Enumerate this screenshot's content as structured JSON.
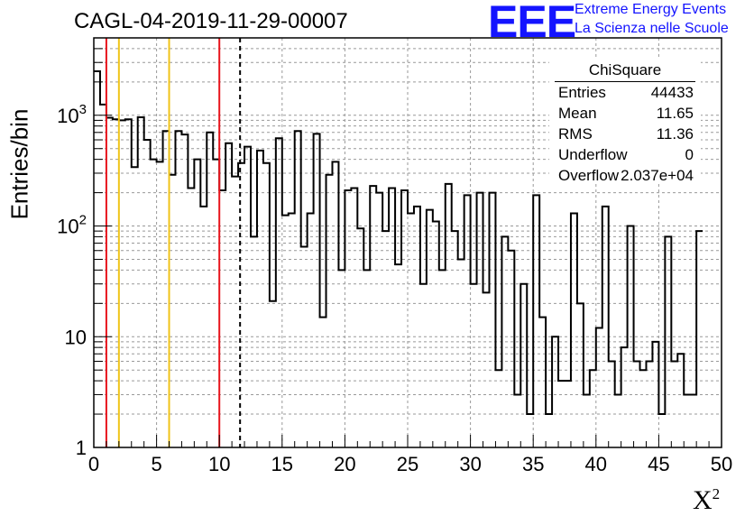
{
  "title": "CAGL-04-2019-11-29-00007",
  "logo": {
    "mark": "EEE",
    "line1": "Extreme Energy Events",
    "line2": "La Scienza nelle Scuole",
    "color": "#1414ff"
  },
  "stats": {
    "name": "ChiSquare",
    "rows": [
      {
        "key": "Entries",
        "value": "44433"
      },
      {
        "key": "Mean",
        "value": "11.65"
      },
      {
        "key": "RMS",
        "value": "11.36"
      },
      {
        "key": "Underflow",
        "value": "0"
      },
      {
        "key": "Overflow",
        "value": "2.037e+04"
      }
    ]
  },
  "chart_data": {
    "type": "histogram-step",
    "xlabel": "X",
    "xlabel_sup": "2",
    "ylabel": "Entries/bin",
    "xlim": [
      0,
      50
    ],
    "ylim": [
      1,
      5000
    ],
    "yscale": "log",
    "grid": true,
    "bin_width": 0.5,
    "x_ticks": [
      "0",
      "5",
      "10",
      "15",
      "20",
      "25",
      "30",
      "35",
      "40",
      "45",
      "50"
    ],
    "y_ticks": [
      {
        "value": 1,
        "base": "1",
        "exp": ""
      },
      {
        "value": 10,
        "base": "10",
        "exp": ""
      },
      {
        "value": 100,
        "base": "10",
        "exp": "2"
      },
      {
        "value": 1000,
        "base": "10",
        "exp": "3"
      }
    ],
    "values": [
      2500,
      1250,
      950,
      920,
      900,
      920,
      340,
      960,
      600,
      400,
      380,
      720,
      290,
      720,
      670,
      220,
      400,
      150,
      700,
      400,
      210,
      560,
      280,
      370,
      520,
      80,
      480,
      370,
      21,
      620,
      125,
      130,
      720,
      65,
      130,
      680,
      15,
      290,
      380,
      40,
      210,
      220,
      95,
      40,
      230,
      200,
      90,
      220,
      45,
      210,
      130,
      150,
      30,
      140,
      110,
      40,
      240,
      90,
      50,
      190,
      30,
      200,
      25,
      200,
      5,
      80,
      60,
      3,
      30,
      2,
      190,
      15,
      2,
      10,
      4,
      4,
      130,
      20,
      3,
      5,
      12,
      150,
      6,
      3,
      8,
      100,
      6,
      5,
      6,
      9,
      2,
      80,
      6,
      7,
      3,
      3,
      90
    ],
    "vlines": [
      {
        "x": 1,
        "color": "#e8141c",
        "style": "solid"
      },
      {
        "x": 2,
        "color": "#f0c419",
        "style": "solid"
      },
      {
        "x": 6,
        "color": "#f0c419",
        "style": "solid"
      },
      {
        "x": 10,
        "color": "#e8141c",
        "style": "solid"
      },
      {
        "x": 11.65,
        "color": "#000000",
        "style": "dashed"
      }
    ]
  }
}
